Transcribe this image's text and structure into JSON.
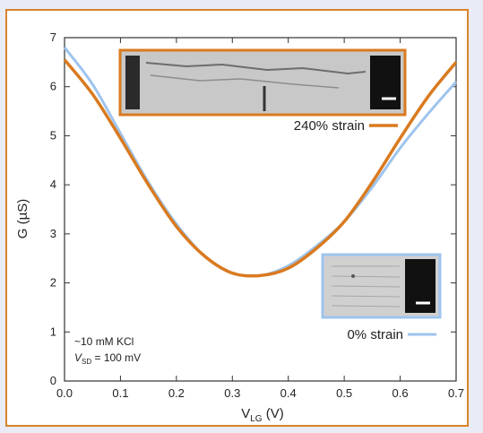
{
  "chart_data": {
    "type": "line",
    "xlabel_main": "V",
    "xlabel_sub": "LG",
    "xlabel_unit": " (V)",
    "ylabel": "G (µS)",
    "xlim": [
      0.0,
      0.7
    ],
    "ylim": [
      0,
      7
    ],
    "xticks": [
      0.0,
      0.1,
      0.2,
      0.3,
      0.4,
      0.5,
      0.6,
      0.7
    ],
    "xtick_labels": [
      "0.0",
      "0.1",
      "0.2",
      "0.3",
      "0.4",
      "0.5",
      "0.6",
      "0.7"
    ],
    "yticks": [
      0,
      1,
      2,
      3,
      4,
      5,
      6,
      7
    ],
    "ytick_labels": [
      "0",
      "1",
      "2",
      "3",
      "4",
      "5",
      "6",
      "7"
    ],
    "grid": false,
    "series": [
      {
        "name": "0% strain",
        "color": "#9ec4ee",
        "x": [
          0.0,
          0.05,
          0.1,
          0.15,
          0.2,
          0.25,
          0.3,
          0.35,
          0.4,
          0.45,
          0.5,
          0.55,
          0.6,
          0.65,
          0.7
        ],
        "y": [
          6.8,
          6.05,
          5.05,
          4.05,
          3.2,
          2.55,
          2.2,
          2.15,
          2.35,
          2.75,
          3.25,
          3.95,
          4.75,
          5.45,
          6.1
        ]
      },
      {
        "name": "240% strain",
        "color": "#d97a1f",
        "x": [
          0.0,
          0.05,
          0.1,
          0.15,
          0.2,
          0.25,
          0.3,
          0.35,
          0.4,
          0.45,
          0.5,
          0.55,
          0.6,
          0.65,
          0.7
        ],
        "y": [
          6.55,
          5.85,
          4.95,
          4.0,
          3.15,
          2.55,
          2.2,
          2.15,
          2.3,
          2.7,
          3.25,
          4.05,
          4.95,
          5.8,
          6.5
        ]
      }
    ],
    "annotations": {
      "line1": "~10 mM KCl",
      "line2_main": "V",
      "line2_sub": "SD",
      "line2_rest": " = 100 mV"
    }
  },
  "insets": {
    "strained_border": "#d97a1f",
    "relaxed_border": "#9ec4ee"
  }
}
